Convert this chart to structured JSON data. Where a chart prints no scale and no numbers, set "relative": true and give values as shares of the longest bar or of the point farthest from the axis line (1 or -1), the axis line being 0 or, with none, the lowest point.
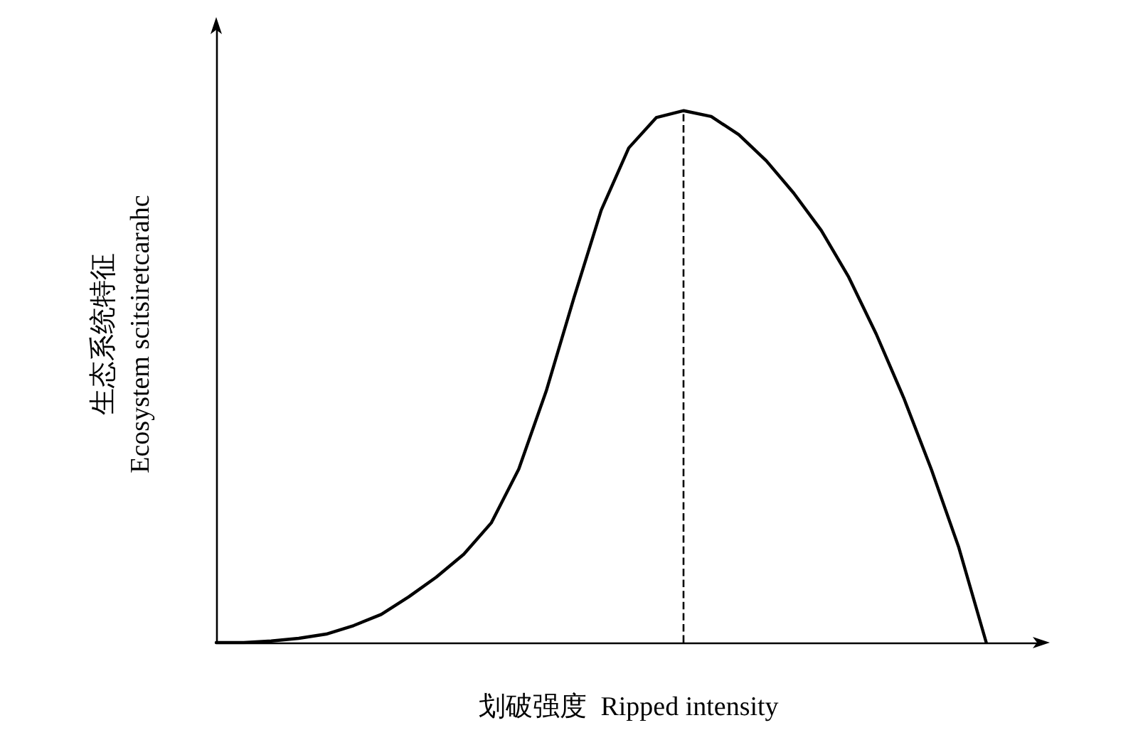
{
  "chart_data": {
    "type": "line",
    "relative": true,
    "xlabel": "划破强度  Ripped intensity",
    "ylabel": "生态系统特征\nEcosystem scitsiretcarahc",
    "categories": [
      null,
      null,
      null,
      null,
      null,
      null,
      null,
      null,
      null,
      null,
      null,
      null,
      null,
      null,
      null,
      null,
      null,
      null,
      null,
      null,
      null,
      null,
      null,
      null,
      null,
      null,
      null,
      null,
      null,
      null,
      null
    ],
    "grid": false,
    "marker": "none",
    "line_style": "solid",
    "series": [
      {
        "color": "#000000",
        "values": [
          0,
          0,
          0.003,
          0.008,
          0.016,
          0.032,
          0.053,
          0.086,
          0.123,
          0.166,
          0.225,
          0.326,
          0.473,
          0.647,
          0.813,
          0.93,
          0.987,
          1,
          0.989,
          0.955,
          0.906,
          0.845,
          0.775,
          0.687,
          0.58,
          0.46,
          0.326,
          0.179,
          0,
          null,
          null
        ]
      }
    ],
    "ref_lines": [
      {
        "axis": "x",
        "color": "#000000",
        "line_style": "dashed"
      }
    ]
  }
}
